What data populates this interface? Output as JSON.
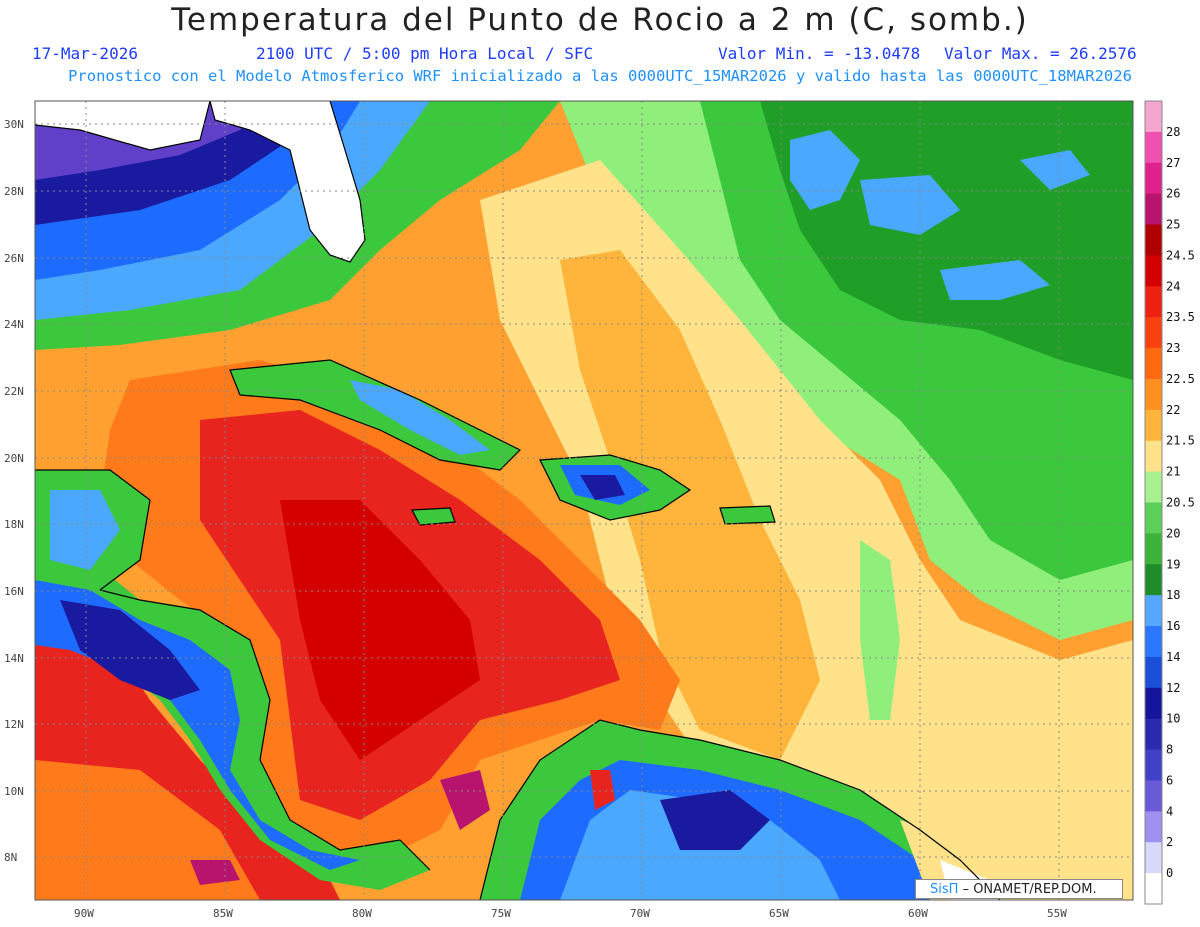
{
  "header": {
    "title": "Temperatura del Punto de Rocio a 2 m (C, somb.)",
    "date": "17-Mar-2026",
    "time": "2100 UTC / 5:00 pm Hora Local / SFC",
    "min_label": "Valor Min. = -13.0478",
    "max_label": "Valor Max. = 26.2576",
    "model_line": "Pronostico con el Modelo Atmosferico WRF inicializado a las 0000UTC_15MAR2026 y valido hasta las  0000UTC_18MAR2026"
  },
  "map": {
    "lat_labels": [
      "30N",
      "28N",
      "26N",
      "24N",
      "22N",
      "20N",
      "18N",
      "16N",
      "14N",
      "12N",
      "10N",
      "8N"
    ],
    "lon_labels": [
      "90W",
      "85W",
      "80W",
      "75W",
      "70W",
      "65W",
      "60W",
      "55W"
    ],
    "colors": {
      "ocean_warm": "#ff7a1a",
      "ocean_hot": "#e8241e",
      "orange_light": "#ffb43c",
      "yellow": "#ffe28a",
      "green_light": "#90ee7a",
      "green": "#3cc83c",
      "green_dark": "#1f9e28",
      "blue_light": "#4aa8ff",
      "blue": "#1e6cff",
      "navy": "#1a1aa0",
      "purple": "#6040c8",
      "land_white": "#ffffff"
    }
  },
  "legend": {
    "labels": [
      "28",
      "27",
      "26",
      "25",
      "24.5",
      "24",
      "23.5",
      "23",
      "22.5",
      "22",
      "21.5",
      "21",
      "20.5",
      "20",
      "19",
      "18",
      "16",
      "14",
      "12",
      "10",
      "8",
      "6",
      "4",
      "2",
      "0"
    ],
    "colors": [
      "#f4a6d0",
      "#f050b0",
      "#e0208c",
      "#b8146e",
      "#b00000",
      "#d40000",
      "#ee2010",
      "#f84010",
      "#ff6a10",
      "#ff9020",
      "#ffb43c",
      "#ffe28a",
      "#a8f090",
      "#5ad05a",
      "#3cb43c",
      "#1e8c28",
      "#54a8ff",
      "#2a78ff",
      "#1a50d8",
      "#14149c",
      "#2a2ab0",
      "#4040c8",
      "#6a5ad8",
      "#a090f0",
      "#d8d8f8",
      "#ffffff"
    ]
  },
  "credit": {
    "brand": "SisΠ",
    "org": "– ONAMET/REP.DOM."
  }
}
